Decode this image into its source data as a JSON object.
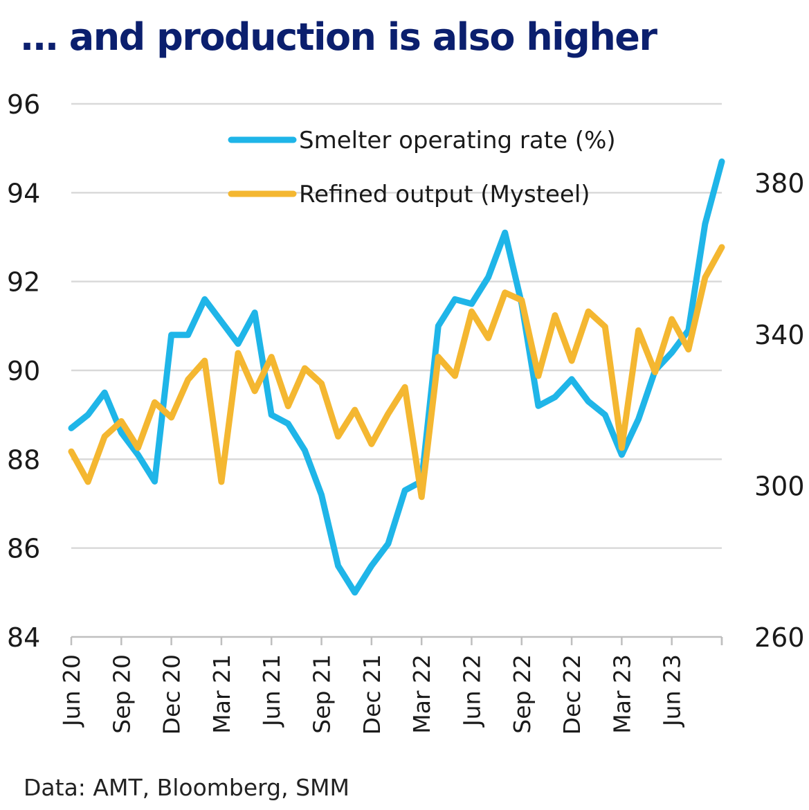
{
  "title": "… and production is also higher",
  "source": "Data: AMT, Bloomberg, SMM",
  "chart_data": {
    "type": "line",
    "title": "… and production is also higher",
    "x": [
      "Jun 20",
      "Jul 20",
      "Aug 20",
      "Sep 20",
      "Oct 20",
      "Nov 20",
      "Dec 20",
      "Jan 21",
      "Feb 21",
      "Mar 21",
      "Apr 21",
      "May 21",
      "Jun 21",
      "Jul 21",
      "Aug 21",
      "Sep 21",
      "Oct 21",
      "Nov 21",
      "Dec 21",
      "Jan 22",
      "Feb 22",
      "Mar 22",
      "Apr 22",
      "May 22",
      "Jun 22",
      "Jul 22",
      "Aug 22",
      "Sep 22",
      "Oct 22",
      "Nov 22",
      "Dec 22",
      "Jan 23",
      "Feb 23",
      "Mar 23",
      "Apr 23",
      "May 23",
      "Jun 23",
      "Jul 23",
      "Aug 23",
      "Sep 23"
    ],
    "x_tick_labels": [
      "Jun 20",
      "Sep 20",
      "Dec 20",
      "Mar 21",
      "Jun 21",
      "Sep 21",
      "Dec 21",
      "Mar 22",
      "Jun 22",
      "Sep 22",
      "Dec 22",
      "Mar 23",
      "Jun 23"
    ],
    "y_left": {
      "ticks": [
        84,
        86,
        88,
        90,
        92,
        94,
        96
      ],
      "range": [
        84,
        96
      ]
    },
    "y_right": {
      "ticks": [
        260,
        300,
        340,
        380
      ],
      "range": [
        260,
        400.9
      ]
    },
    "grid": true,
    "legend_position": "top-right",
    "series": [
      {
        "name": "Smelter operating rate (%)",
        "axis": "left",
        "color": "#1fb5e8",
        "values": [
          88.7,
          89.0,
          89.5,
          88.6,
          88.1,
          87.5,
          90.8,
          90.8,
          91.6,
          91.1,
          90.6,
          91.3,
          89.0,
          88.8,
          88.2,
          87.2,
          85.6,
          85.0,
          85.6,
          86.1,
          87.3,
          87.5,
          91.0,
          91.6,
          91.5,
          92.1,
          93.1,
          91.5,
          89.2,
          89.4,
          89.8,
          89.3,
          89.0,
          88.1,
          88.9,
          90.0,
          90.4,
          90.9,
          93.3,
          94.7
        ]
      },
      {
        "name": "Refined output (Mysteel)",
        "axis": "right",
        "color": "#f4b731",
        "values": [
          309,
          301,
          313,
          317,
          310,
          322,
          318,
          328,
          333,
          301,
          335,
          325,
          334,
          321,
          331,
          327,
          313,
          320,
          311,
          319,
          326,
          297,
          334,
          329,
          346,
          339,
          351,
          349,
          329,
          345,
          333,
          346,
          342,
          310,
          341,
          330,
          344,
          336,
          355,
          363
        ]
      }
    ]
  }
}
